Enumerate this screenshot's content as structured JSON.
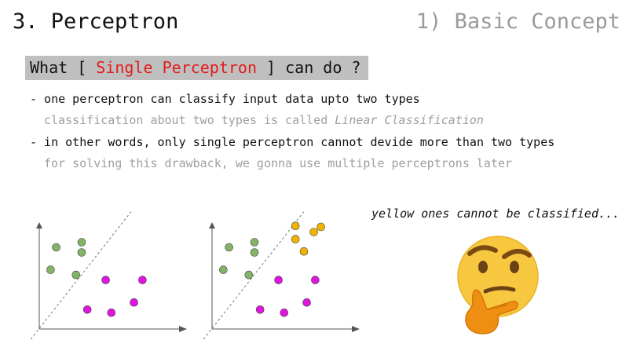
{
  "slide": {
    "title": "3. Perceptron",
    "subtitle": "1) Basic Concept"
  },
  "banner": {
    "prefix": "What [ ",
    "highlight": "Single Perceptron",
    "suffix": " ] can do ?",
    "highlight_color": "#e21b1b"
  },
  "bullets": [
    {
      "text": "- one perceptron can classify input data upto two types",
      "sub_prefix": "classification about two types is called ",
      "sub_emphasis": "Linear Classification"
    },
    {
      "text": "- in other words, only single perceptron cannot devide more than two types",
      "sub_prefix": "for solving this drawback, we gonna use multiple perceptrons later",
      "sub_emphasis": ""
    }
  ],
  "note": "yellow ones cannot be classified...",
  "colors": {
    "green": "#82b366",
    "magenta": "#e014e0",
    "yellow": "#f0b400"
  },
  "icon": "thinking-face-icon",
  "chart_data": [
    {
      "type": "scatter",
      "xlim": [
        0,
        10
      ],
      "ylim": [
        0,
        10
      ],
      "grid": false,
      "series": [
        {
          "color": "green",
          "points": [
            [
              1.2,
              8.0
            ],
            [
              3.0,
              8.5
            ],
            [
              3.0,
              7.5
            ],
            [
              0.8,
              5.8
            ],
            [
              2.6,
              5.3
            ]
          ]
        },
        {
          "color": "magenta",
          "points": [
            [
              4.7,
              4.8
            ],
            [
              7.3,
              4.8
            ],
            [
              6.7,
              2.6
            ],
            [
              3.4,
              1.9
            ],
            [
              5.1,
              1.6
            ]
          ]
        }
      ],
      "separator": [
        [
          -0.6,
          -1.0
        ],
        [
          6.5,
          11.5
        ]
      ]
    },
    {
      "type": "scatter",
      "xlim": [
        0,
        10
      ],
      "ylim": [
        0,
        10
      ],
      "grid": false,
      "series": [
        {
          "color": "green",
          "points": [
            [
              1.2,
              8.0
            ],
            [
              3.0,
              8.5
            ],
            [
              3.0,
              7.5
            ],
            [
              0.8,
              5.8
            ],
            [
              2.6,
              5.3
            ]
          ]
        },
        {
          "color": "magenta",
          "points": [
            [
              4.7,
              4.8
            ],
            [
              7.3,
              4.8
            ],
            [
              6.7,
              2.6
            ],
            [
              3.4,
              1.9
            ],
            [
              5.1,
              1.6
            ]
          ]
        },
        {
          "color": "yellow",
          "points": [
            [
              5.9,
              10.1
            ],
            [
              7.2,
              9.5
            ],
            [
              7.7,
              10.0
            ],
            [
              5.9,
              8.8
            ],
            [
              6.5,
              7.6
            ]
          ]
        }
      ],
      "separator": [
        [
          -0.6,
          -1.0
        ],
        [
          6.5,
          11.5
        ]
      ]
    }
  ]
}
